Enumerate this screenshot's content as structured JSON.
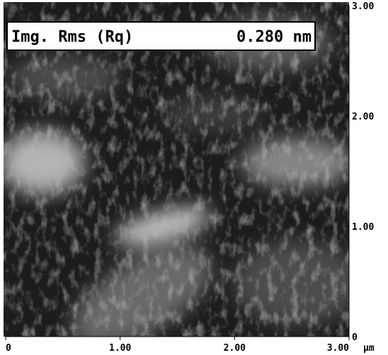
{
  "image": {
    "label": "Img. Rms (Rq)",
    "value": "0.280 nm"
  },
  "y_axis": {
    "ticks": [
      "3.00",
      "2.00",
      "1.00",
      "0"
    ]
  },
  "x_axis": {
    "ticks": [
      "0",
      "1.00",
      "2.00",
      "3.00"
    ],
    "unit": "µm"
  }
}
